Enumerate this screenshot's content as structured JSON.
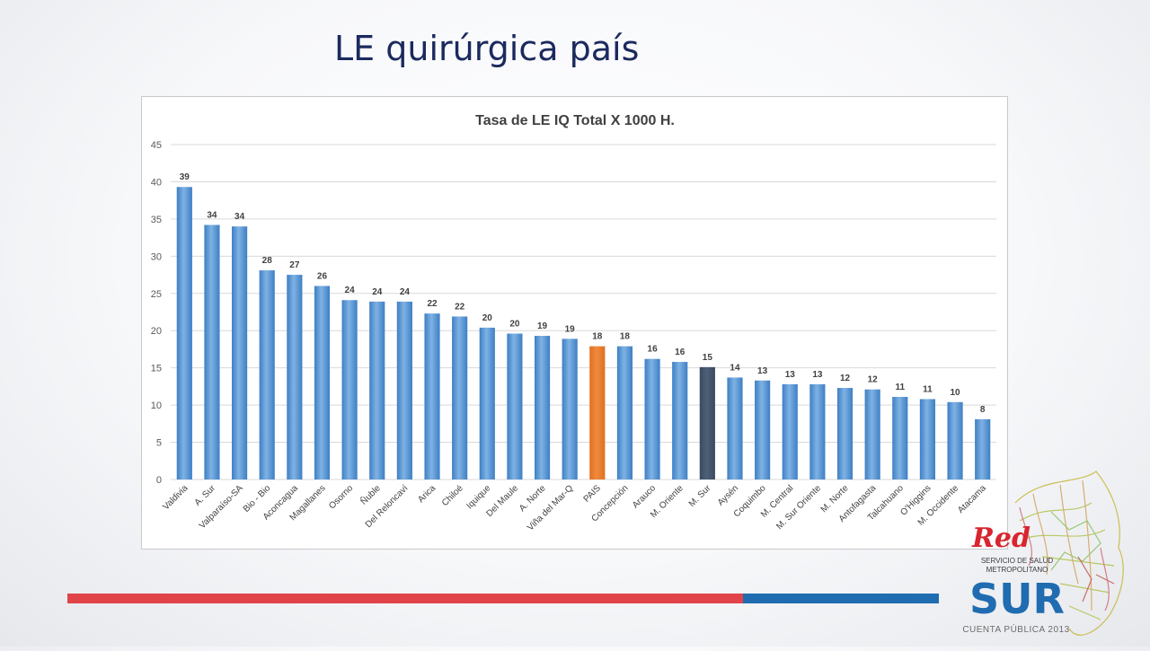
{
  "slide": {
    "title": "LE quirúrgica país"
  },
  "colors": {
    "bar_default": "#5b9bd5",
    "bar_pais": "#ed7d31",
    "bar_msur": "#44546a",
    "stripe_red": "#e04449",
    "stripe_blue": "#1f6cb0",
    "title": "#1b2a5e"
  },
  "chart_data": {
    "type": "bar",
    "title": "Tasa de LE IQ Total X 1000 H.",
    "xlabel": "",
    "ylabel": "",
    "ylim": [
      0,
      45
    ],
    "yticks": [
      0,
      5,
      10,
      15,
      20,
      25,
      30,
      35,
      40,
      45
    ],
    "grid": true,
    "legend": "none",
    "categories": [
      "Valdivia",
      "A. Sur",
      "Valparaíso-SA",
      "Bio - Bio",
      "Aconcagua",
      "Magallanes",
      "Osorno",
      "Ñuble",
      "Del Reloncaví",
      "Arica",
      "Chiloé",
      "Iquique",
      "Del Maule",
      "A. Norte",
      "Viña del Mar-Q",
      "PAIS",
      "Concepción",
      "Arauco",
      "M. Oriente",
      "M. Sur",
      "Aysén",
      "Coquimbo",
      "M. Central",
      "M. Sur Oriente",
      "M. Norte",
      "Antofagasta",
      "Talcahuano",
      "O'Higgins",
      "M. Occidente",
      "Atacama"
    ],
    "values": [
      39.3,
      34.2,
      34.0,
      28.1,
      27.5,
      26.0,
      24.1,
      23.9,
      23.9,
      22.3,
      21.9,
      20.4,
      19.6,
      19.3,
      18.9,
      17.9,
      17.9,
      16.2,
      15.8,
      15.1,
      13.7,
      13.3,
      12.8,
      12.8,
      12.3,
      12.1,
      11.1,
      10.8,
      10.4,
      8.1
    ],
    "data_labels": [
      "39",
      "34",
      "34",
      "28",
      "27",
      "26",
      "24",
      "24",
      "24",
      "22",
      "22",
      "20",
      "20",
      "19",
      "19",
      "18",
      "18",
      "16",
      "16",
      "15",
      "14",
      "13",
      "13",
      "13",
      "12",
      "12",
      "11",
      "11",
      "10",
      "8"
    ],
    "highlight": {
      "PAIS": "orange",
      "M. Sur": "dark"
    }
  },
  "logo": {
    "line1": "SERVICIO DE SALUD",
    "line2": "METROPOLITANO",
    "name": "SUR",
    "tagline": "CUENTA PÚBLICA 2013"
  }
}
